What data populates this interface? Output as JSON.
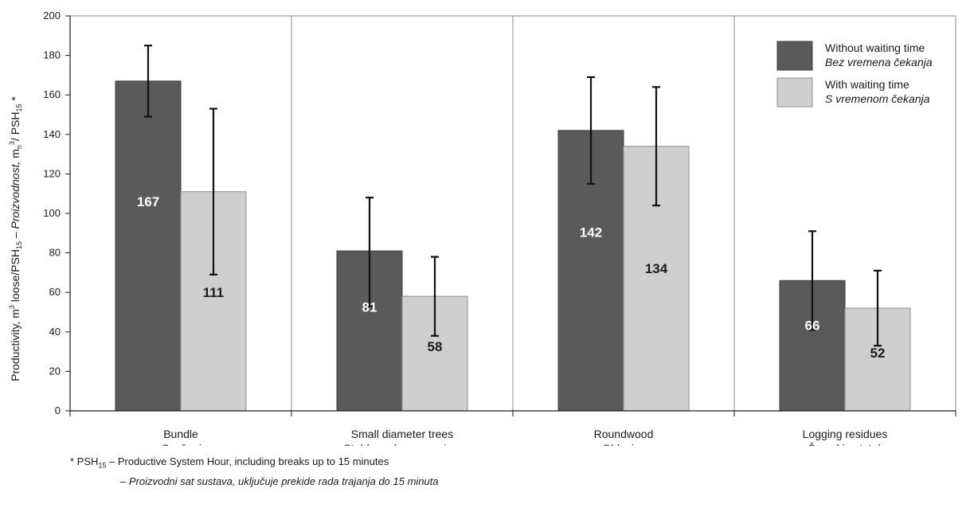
{
  "chart_data": {
    "type": "bar",
    "categories": [
      {
        "name": "Bundle",
        "name_alt": "Svežanj"
      },
      {
        "name": "Small diameter trees",
        "name_alt": "Stabla maloga promjera"
      },
      {
        "name": "Roundwood",
        "name_alt": "Oblovina"
      },
      {
        "name": "Logging residues",
        "name_alt": "Šumski ostatak"
      }
    ],
    "series": [
      {
        "name": "Without waiting time",
        "name_alt": "Bez vremena čekanja",
        "color": "#5a5a5a",
        "label_color": "#ffffff",
        "values": [
          167,
          81,
          142,
          66
        ],
        "error_low": [
          149,
          53,
          115,
          41
        ],
        "error_high": [
          185,
          108,
          169,
          91
        ]
      },
      {
        "name": "With waiting time",
        "name_alt": "S vremenom čekanja",
        "color": "#cfcfcf",
        "label_color": "#1a1a1a",
        "values": [
          111,
          58,
          134,
          52
        ],
        "error_low": [
          69,
          38,
          104,
          33
        ],
        "error_high": [
          153,
          78,
          164,
          71
        ]
      }
    ],
    "ylim": [
      0,
      200
    ],
    "yticks": [
      0,
      20,
      40,
      60,
      80,
      100,
      120,
      140,
      160,
      180,
      200
    ],
    "ylabel": {
      "part1": "Productivity, m",
      "sup1": "3",
      "part2": " loose/PSH",
      "sub2": "15",
      "part3": " – ",
      "part4_italic": "Proizvodnost,",
      "part5": " m",
      "sub5": "n",
      "sup5": "3",
      "part6": "/ PSH",
      "sub6": "15",
      "part7": " *"
    },
    "grid": "vertical separators between categories",
    "legend_position": "top-right"
  },
  "footnote": {
    "line1_prefix": "* PSH",
    "line1_sub": "15",
    "line1_text": " – Productive System Hour, including breaks up to 15 minutes",
    "line2_text": "– Proizvodni sat sustava, uključuje prekide rada trajanja do 15 minuta"
  }
}
